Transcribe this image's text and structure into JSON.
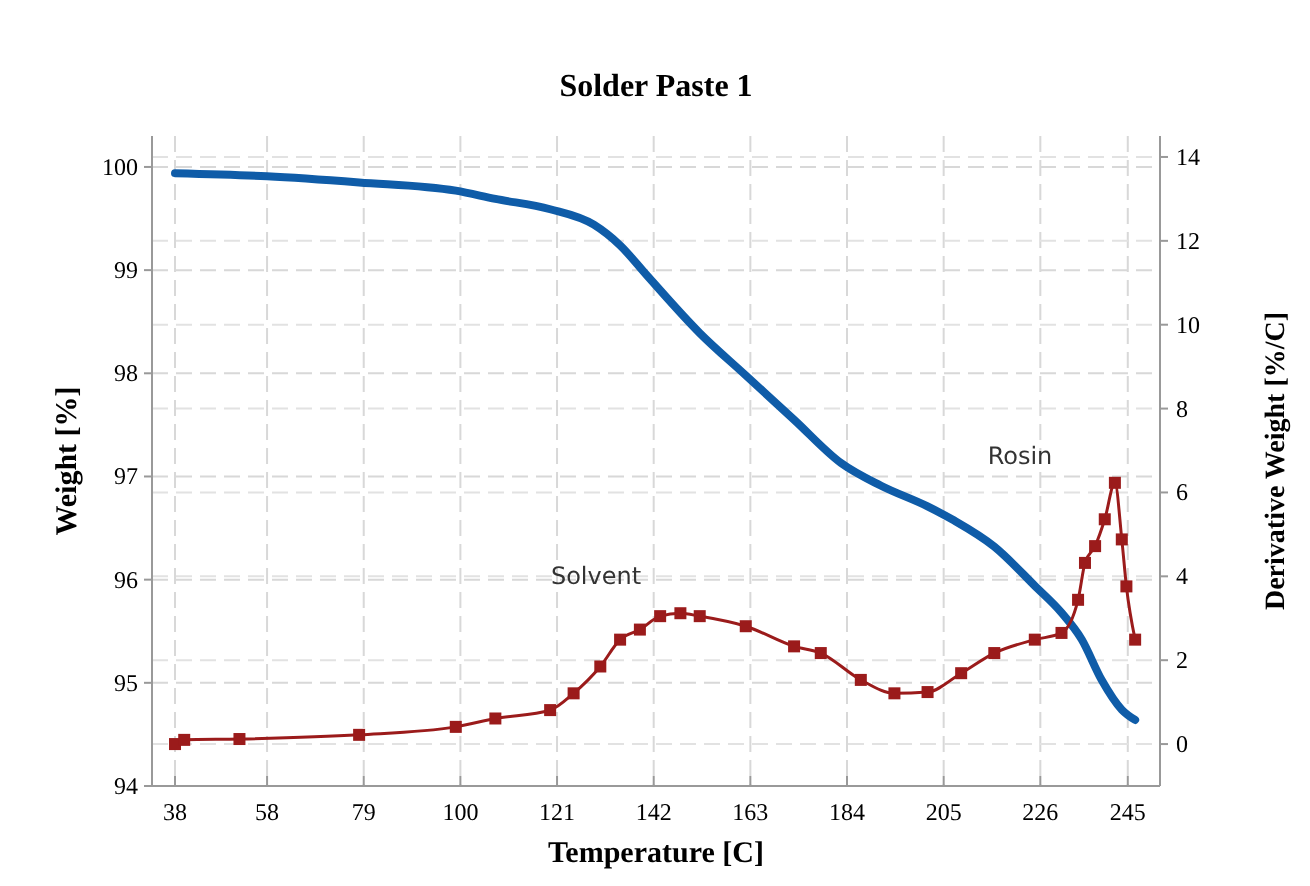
{
  "chart_data": {
    "type": "line",
    "title": "Solder Paste 1",
    "xlabel": "Temperature [C]",
    "ylabel": "Weight [%]",
    "y2label": "Derivative Weight [%/C]",
    "xlim": [
      33,
      252
    ],
    "xticks": [
      38,
      58,
      79,
      100,
      121,
      142,
      163,
      184,
      205,
      226,
      245
    ],
    "ylim": [
      94,
      100.3
    ],
    "yticks": [
      94,
      95,
      96,
      97,
      98,
      99,
      100
    ],
    "y2lim": [
      -1,
      14.5
    ],
    "y2ticks": [
      0,
      2,
      4,
      6,
      8,
      10,
      12,
      14
    ],
    "grid": true,
    "series": [
      {
        "color": "#0f5ca8",
        "marker": "none",
        "x": [
          38,
          58,
          78,
          99,
          107.6,
          119.5,
          129,
          134.7,
          140.5,
          152,
          162,
          172.5,
          182.7,
          191.4,
          201.5,
          207,
          216,
          224.8,
          230.6,
          235,
          239.3,
          243.7,
          246.6
        ],
        "values": [
          99.94,
          99.91,
          99.85,
          99.77,
          99.69,
          99.59,
          99.44,
          99.24,
          98.95,
          98.39,
          97.98,
          97.55,
          97.13,
          96.91,
          96.71,
          96.58,
          96.32,
          95.94,
          95.68,
          95.42,
          95.03,
          94.74,
          94.64
        ]
      },
      {
        "color": "#9b1b1b",
        "axis": "y2",
        "marker": "square",
        "x": [
          38,
          40,
          52,
          78,
          99,
          107.6,
          119.5,
          124.6,
          130.4,
          134.7,
          139,
          143.4,
          147.8,
          152,
          162,
          172.5,
          178.3,
          187,
          194.3,
          201.5,
          208.8,
          216,
          224.8,
          230.6,
          234.2,
          235.7,
          237.9,
          240,
          242.2,
          243.7,
          244.7,
          246.6
        ],
        "values": [
          0.0,
          0.1,
          0.12,
          0.22,
          0.41,
          0.61,
          0.81,
          1.21,
          1.85,
          2.49,
          2.73,
          3.05,
          3.12,
          3.05,
          2.81,
          2.33,
          2.17,
          1.53,
          1.21,
          1.24,
          1.69,
          2.17,
          2.49,
          2.65,
          3.44,
          4.32,
          4.72,
          5.36,
          6.23,
          4.88,
          3.76,
          2.49
        ]
      }
    ],
    "annotations": [
      "Solvent",
      "Rosin"
    ]
  }
}
